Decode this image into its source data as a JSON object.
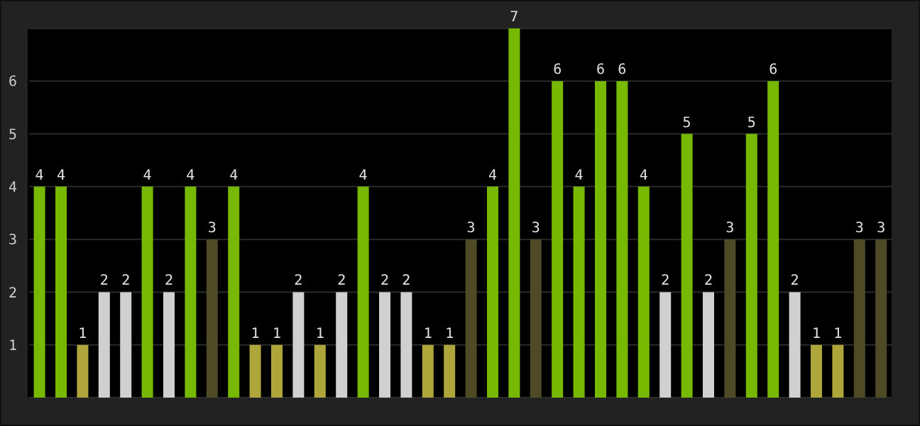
{
  "chart_data": {
    "type": "bar",
    "categories": [
      null,
      null,
      null,
      null,
      null,
      null,
      null,
      null,
      null,
      null,
      null,
      null,
      null,
      null,
      null,
      null,
      null,
      null,
      null,
      null,
      null,
      null,
      null,
      null,
      null,
      null,
      null,
      null,
      null,
      null,
      null,
      null,
      null,
      null,
      null,
      null,
      null,
      null,
      null,
      null
    ],
    "values": [
      4,
      4,
      1,
      2,
      2,
      4,
      2,
      4,
      3,
      4,
      1,
      1,
      2,
      1,
      2,
      4,
      2,
      2,
      1,
      1,
      3,
      4,
      7,
      3,
      6,
      4,
      6,
      6,
      4,
      2,
      5,
      2,
      3,
      5,
      6,
      2,
      1,
      1,
      3,
      3
    ],
    "colors": [
      "#76b900",
      "#76b900",
      "#aea63a",
      "#d0d0d0",
      "#d0d0d0",
      "#76b900",
      "#d0d0d0",
      "#76b900",
      "#4e4a26",
      "#76b900",
      "#aea63a",
      "#aea63a",
      "#d0d0d0",
      "#aea63a",
      "#d0d0d0",
      "#76b900",
      "#d0d0d0",
      "#d0d0d0",
      "#aea63a",
      "#aea63a",
      "#4e4a26",
      "#76b900",
      "#76b900",
      "#4e4a26",
      "#76b900",
      "#76b900",
      "#76b900",
      "#76b900",
      "#76b900",
      "#d0d0d0",
      "#76b900",
      "#d0d0d0",
      "#4e4a26",
      "#76b900",
      "#76b900",
      "#d0d0d0",
      "#aea63a",
      "#aea63a",
      "#4e4a26",
      "#4e4a26"
    ],
    "ylim": [
      0,
      7
    ],
    "yticks": [
      1,
      2,
      3,
      4,
      5,
      6
    ],
    "grid": "y",
    "tick_labels": "y",
    "data_labels": true
  }
}
